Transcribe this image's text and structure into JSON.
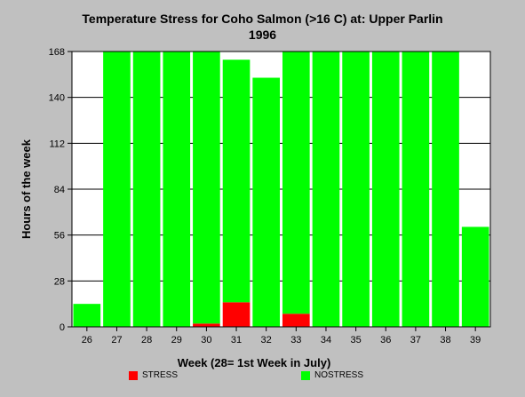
{
  "chart_data": {
    "type": "bar",
    "stacked": true,
    "title": "Temperature Stress for Coho Salmon (>16 C) at: Upper Parlin",
    "subtitle": "1996",
    "xlabel": "Week (28= 1st Week in July)",
    "ylabel": "Hours of the week",
    "categories": [
      "26",
      "27",
      "28",
      "29",
      "30",
      "31",
      "32",
      "33",
      "34",
      "35",
      "36",
      "37",
      "38",
      "39"
    ],
    "ylim": [
      0,
      168
    ],
    "yticks": [
      0,
      28,
      56,
      84,
      112,
      140,
      168
    ],
    "grid": true,
    "legend_position": "bottom",
    "series": [
      {
        "name": "STRESS",
        "color": "#ff0000",
        "values": [
          0,
          0,
          0,
          0,
          2,
          15,
          0,
          8,
          0,
          0,
          0,
          0,
          0,
          0
        ]
      },
      {
        "name": "NOSTRESS",
        "color": "#00ff00",
        "values": [
          14,
          168,
          168,
          168,
          166,
          148,
          152,
          160,
          168,
          168,
          168,
          168,
          168,
          61
        ]
      }
    ]
  }
}
